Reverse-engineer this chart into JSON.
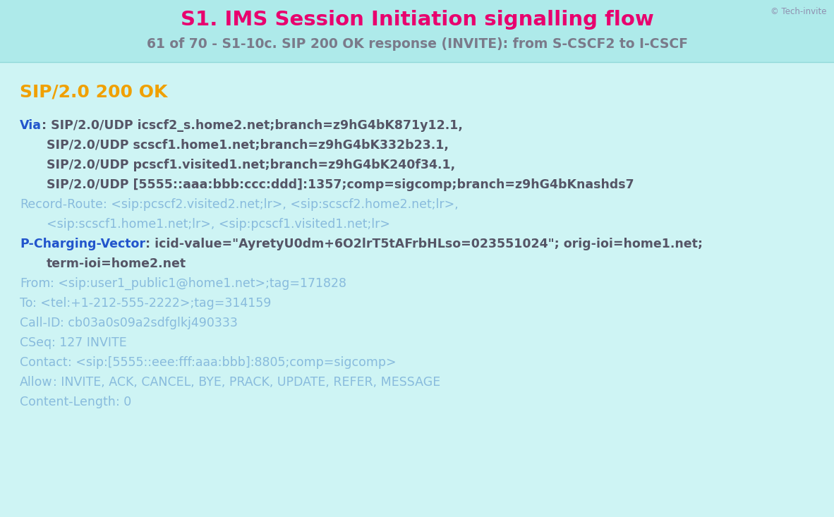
{
  "bg_color": "#cef4f4",
  "header_bg_color": "#aeeaea",
  "title": "S1. IMS Session Initiation signalling flow",
  "title_color": "#e8006e",
  "subtitle": "61 of 70 - S1-10c. SIP 200 OK response (INVITE): from S-CSCF2 to I-CSCF",
  "subtitle_color": "#7a7a8a",
  "copyright": "© Tech-invite",
  "copyright_color": "#9090b0",
  "sip_status": "SIP/2.0 200 OK",
  "sip_status_color": "#f0a000",
  "lines": [
    {
      "segments": [
        {
          "text": "Via",
          "color": "#2255cc",
          "bold": true
        },
        {
          "text": ": SIP/2.0/UDP icscf2_s.home2.net;branch=z9hG4bK871y12.1,",
          "color": "#555566",
          "bold": true
        }
      ],
      "indent": 0
    },
    {
      "segments": [
        {
          "text": "SIP/2.0/UDP scscf1.home1.net;branch=z9hG4bK332b23.1,",
          "color": "#555566",
          "bold": true
        }
      ],
      "indent": 1
    },
    {
      "segments": [
        {
          "text": "SIP/2.0/UDP pcscf1.visited1.net;branch=z9hG4bK240f34.1,",
          "color": "#555566",
          "bold": true
        }
      ],
      "indent": 1
    },
    {
      "segments": [
        {
          "text": "SIP/2.0/UDP [5555::aaa:bbb:ccc:ddd]:1357;comp=sigcomp;branch=z9hG4bKnashds7",
          "color": "#555566",
          "bold": true
        }
      ],
      "indent": 1
    },
    {
      "segments": [
        {
          "text": "Record-Route",
          "color": "#88bbdd",
          "bold": false
        },
        {
          "text": ": <sip:pcscf2.visited2.net;lr>, <sip:scscf2.home2.net;lr>,",
          "color": "#88bbdd",
          "bold": false
        }
      ],
      "indent": 0
    },
    {
      "segments": [
        {
          "text": "<sip:scscf1.home1.net;lr>, <sip:pcscf1.visited1.net;lr>",
          "color": "#88bbdd",
          "bold": false
        }
      ],
      "indent": 1
    },
    {
      "segments": [
        {
          "text": "P-Charging-Vector",
          "color": "#2255cc",
          "bold": true
        },
        {
          "text": ": icid-value=\"AyretyU0dm+6O2lrT5tAFrbHLso=023551024\"; orig-ioi=home1.net;",
          "color": "#555566",
          "bold": true
        }
      ],
      "indent": 0
    },
    {
      "segments": [
        {
          "text": "term-ioi=home2.net",
          "color": "#555566",
          "bold": true
        }
      ],
      "indent": 1
    },
    {
      "segments": [
        {
          "text": "From",
          "color": "#88bbdd",
          "bold": false
        },
        {
          "text": ": <sip:user1_public1@home1.net>;tag=171828",
          "color": "#88bbdd",
          "bold": false
        }
      ],
      "indent": 0
    },
    {
      "segments": [
        {
          "text": "To",
          "color": "#88bbdd",
          "bold": false
        },
        {
          "text": ": <tel:+1-212-555-2222>;tag=314159",
          "color": "#88bbdd",
          "bold": false
        }
      ],
      "indent": 0
    },
    {
      "segments": [
        {
          "text": "Call-ID",
          "color": "#88bbdd",
          "bold": false
        },
        {
          "text": ": cb03a0s09a2sdfglkj490333",
          "color": "#88bbdd",
          "bold": false
        }
      ],
      "indent": 0
    },
    {
      "segments": [
        {
          "text": "CSeq",
          "color": "#88bbdd",
          "bold": false
        },
        {
          "text": ": 127 INVITE",
          "color": "#88bbdd",
          "bold": false
        }
      ],
      "indent": 0
    },
    {
      "segments": [
        {
          "text": "Contact",
          "color": "#88bbdd",
          "bold": false
        },
        {
          "text": ": <sip:[5555::eee:fff:aaa:bbb]:8805;comp=sigcomp>",
          "color": "#88bbdd",
          "bold": false
        }
      ],
      "indent": 0
    },
    {
      "segments": [
        {
          "text": "Allow",
          "color": "#88bbdd",
          "bold": false
        },
        {
          "text": ": INVITE, ACK, CANCEL, BYE, PRACK, UPDATE, REFER, MESSAGE",
          "color": "#88bbdd",
          "bold": false
        }
      ],
      "indent": 0
    },
    {
      "segments": [
        {
          "text": "Content-Length",
          "color": "#88bbdd",
          "bold": false
        },
        {
          "text": ": 0",
          "color": "#88bbdd",
          "bold": false
        }
      ],
      "indent": 0
    }
  ]
}
